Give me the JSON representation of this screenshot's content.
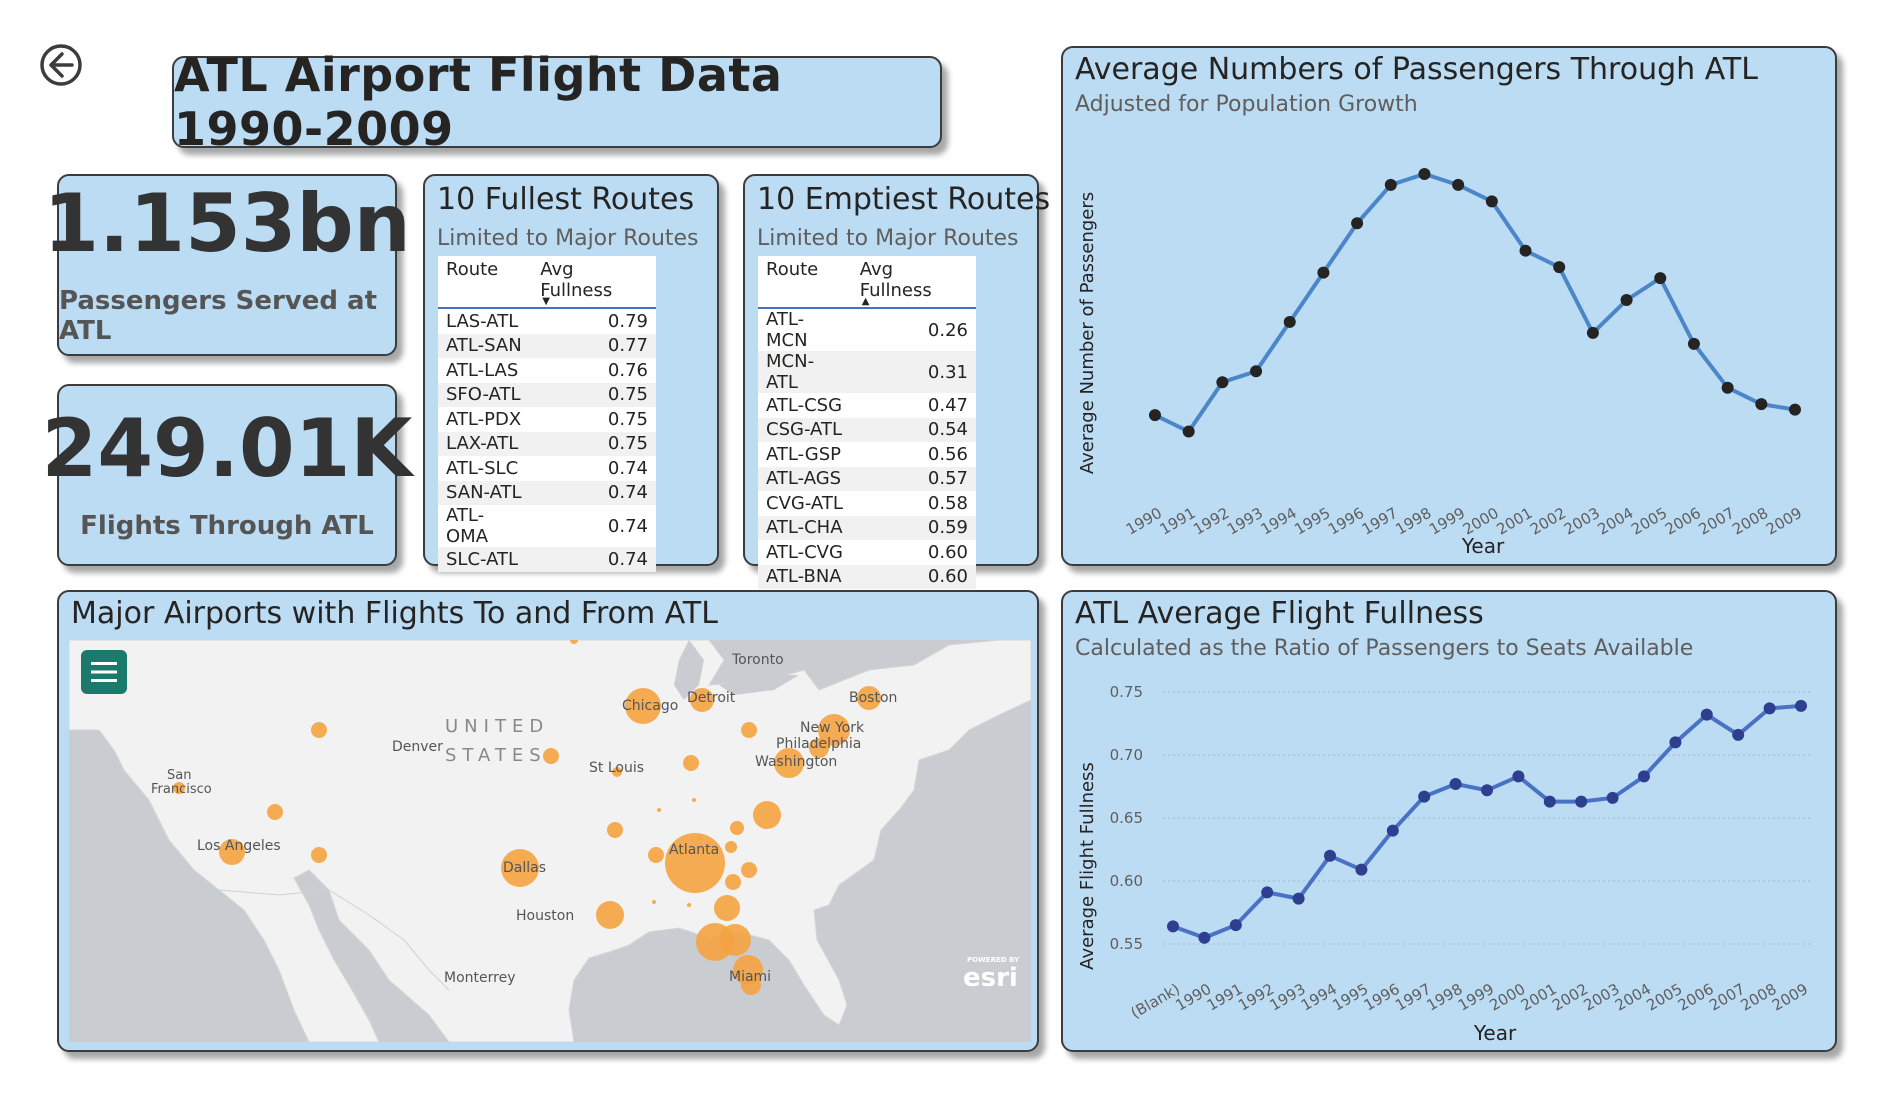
{
  "title": "ATL Airport Flight Data 1990-2009",
  "kpis": {
    "passengers": {
      "value": "1.153bn",
      "label": "Passengers Served at ATL"
    },
    "flights": {
      "value": "249.01K",
      "label": "Flights Through ATL"
    }
  },
  "fullest": {
    "title": "10 Fullest Routes",
    "subtitle": "Limited to Major Routes",
    "columns": [
      "Route",
      "Avg Fullness"
    ],
    "rows": [
      [
        "LAS-ATL",
        "0.79"
      ],
      [
        "ATL-SAN",
        "0.77"
      ],
      [
        "ATL-LAS",
        "0.76"
      ],
      [
        "SFO-ATL",
        "0.75"
      ],
      [
        "ATL-PDX",
        "0.75"
      ],
      [
        "LAX-ATL",
        "0.75"
      ],
      [
        "ATL-SLC",
        "0.74"
      ],
      [
        "SAN-ATL",
        "0.74"
      ],
      [
        "ATL-OMA",
        "0.74"
      ],
      [
        "SLC-ATL",
        "0.74"
      ]
    ]
  },
  "emptiest": {
    "title": "10 Emptiest Routes",
    "subtitle": "Limited to Major Routes",
    "columns": [
      "Route",
      "Avg Fullness"
    ],
    "rows": [
      [
        "ATL-MCN",
        "0.26"
      ],
      [
        "MCN-ATL",
        "0.31"
      ],
      [
        "ATL-CSG",
        "0.47"
      ],
      [
        "CSG-ATL",
        "0.54"
      ],
      [
        "ATL-GSP",
        "0.56"
      ],
      [
        "ATL-AGS",
        "0.57"
      ],
      [
        "CVG-ATL",
        "0.58"
      ],
      [
        "ATL-CHA",
        "0.59"
      ],
      [
        "ATL-CVG",
        "0.60"
      ],
      [
        "ATL-BNA",
        "0.60"
      ]
    ]
  },
  "map": {
    "title": "Major Airports with Flights To and From ATL",
    "labels": {
      "toronto": "Toronto",
      "chicago": "Chicago",
      "detroit": "Detroit",
      "boston": "Boston",
      "newyork": "New York",
      "philadelphia": "Philadelphia",
      "washington": "Washington",
      "denver": "Denver",
      "united": "UNITED",
      "states": "STATES",
      "stlouis": "St Louis",
      "sanfrancisco1": "San",
      "sanfrancisco2": "Francisco",
      "losangeles": "Los Angeles",
      "atlanta": "Atlanta",
      "dallas": "Dallas",
      "houston": "Houston",
      "monterrey": "Monterrey",
      "miami": "Miami"
    },
    "esri_powered": "POWERED BY",
    "esri_logo": "esri",
    "colors": {
      "land": "#f0f0f0",
      "water": "#c8ccd0",
      "marker": "#f5a340"
    }
  },
  "chart_data": [
    {
      "type": "line",
      "title": "Average Numbers of Passengers Through ATL",
      "subtitle": "Adjusted for Population Growth",
      "xlabel": "Year",
      "ylabel": "Average Number of Passengers",
      "x": [
        "1990",
        "1991",
        "1992",
        "1993",
        "1994",
        "1995",
        "1996",
        "1997",
        "1998",
        "1999",
        "2000",
        "2001",
        "2002",
        "2003",
        "2004",
        "2005",
        "2006",
        "2007",
        "2008",
        "2009"
      ],
      "values": [
        61,
        58,
        67,
        69,
        78,
        87,
        96,
        103,
        105,
        103,
        100,
        91,
        88,
        76,
        82,
        86,
        74,
        66,
        63,
        62
      ],
      "y_axis_shown": false,
      "color": "#4a86c8",
      "marker_color": "#252423"
    },
    {
      "type": "line",
      "title": "ATL Average Flight Fullness",
      "subtitle": "Calculated as the Ratio of Passengers to Seats Available",
      "xlabel": "Year",
      "ylabel": "Average Flight Fullness",
      "x": [
        "(Blank)",
        "1990",
        "1991",
        "1992",
        "1993",
        "1994",
        "1995",
        "1996",
        "1997",
        "1998",
        "1999",
        "2000",
        "2001",
        "2002",
        "2003",
        "2004",
        "2005",
        "2006",
        "2007",
        "2008",
        "2009"
      ],
      "values": [
        0.564,
        0.555,
        0.565,
        0.591,
        0.586,
        0.62,
        0.609,
        0.64,
        0.667,
        0.677,
        0.672,
        0.683,
        0.663,
        0.663,
        0.666,
        0.683,
        0.71,
        0.732,
        0.716,
        0.737,
        0.739
      ],
      "ylim": [
        0.55,
        0.75
      ],
      "yticks": [
        "0.55",
        "0.60",
        "0.65",
        "0.70",
        "0.75"
      ],
      "grid": true,
      "color": "#4a72c4",
      "marker_color": "#2e3f8f"
    }
  ]
}
